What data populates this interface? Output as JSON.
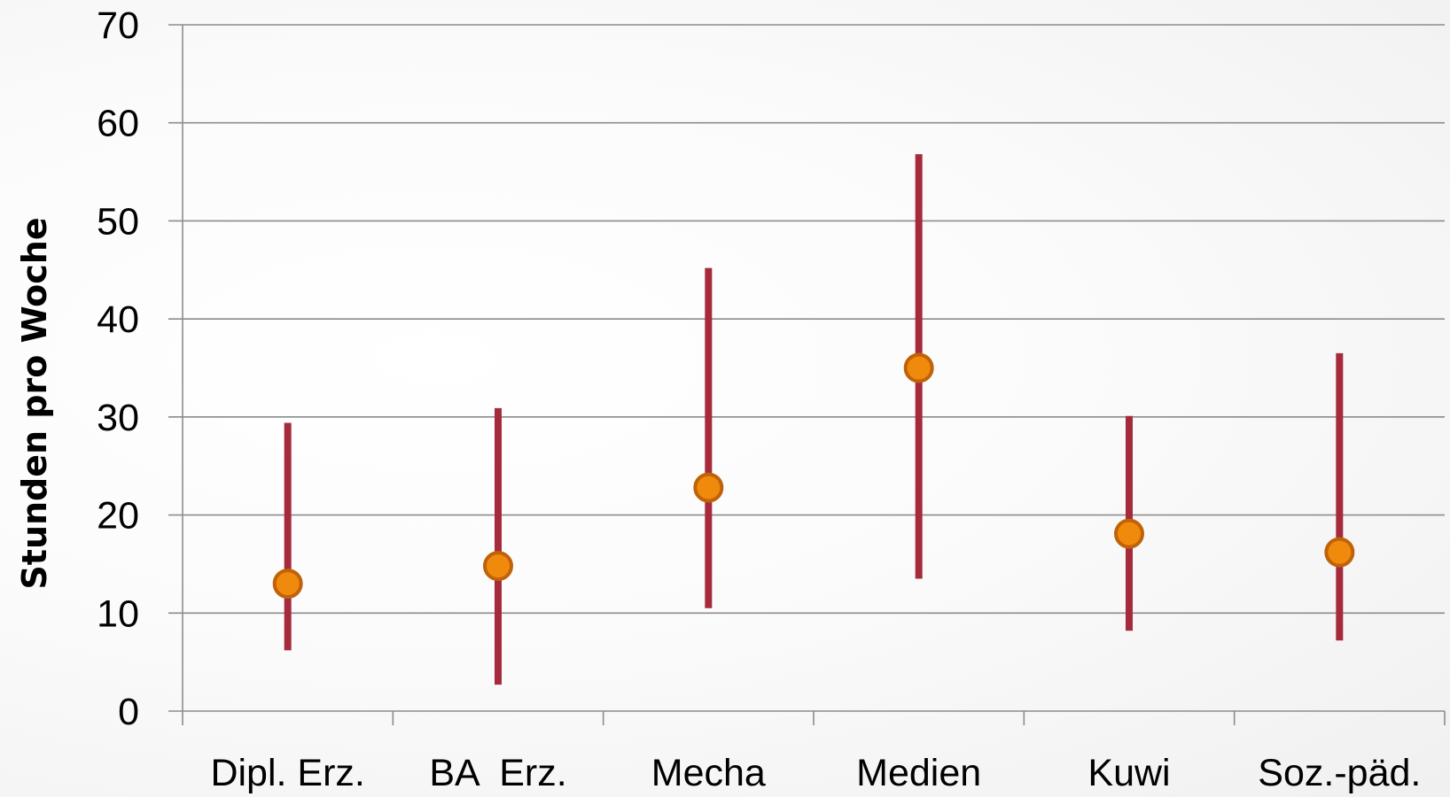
{
  "chart_data": {
    "type": "scatter",
    "subtype": "range-with-mean",
    "title": "",
    "xlabel": "",
    "ylabel": "Stunden pro Woche",
    "ylim": [
      0,
      70
    ],
    "yticks": [
      0,
      10,
      20,
      30,
      40,
      50,
      60,
      70
    ],
    "grid": "horizontal",
    "legend": "none",
    "categories": [
      "Dipl. Erz.",
      "BA  Erz.",
      "Mecha",
      "Medien",
      "Kuwi",
      "Soz.-päd."
    ],
    "mean": [
      13,
      14.8,
      22.8,
      35,
      18.1,
      16.2
    ],
    "min": [
      6.2,
      2.7,
      10.5,
      13.5,
      8.2,
      7.2
    ],
    "max": [
      29.4,
      30.9,
      45.2,
      56.8,
      30.1,
      36.5
    ],
    "colors": {
      "range_line": "#a52a3c",
      "marker_fill": "#f08a0c",
      "marker_edge": "#c0620a",
      "gridline": "#8c8c8c",
      "axis": "#8c8c8c"
    }
  }
}
